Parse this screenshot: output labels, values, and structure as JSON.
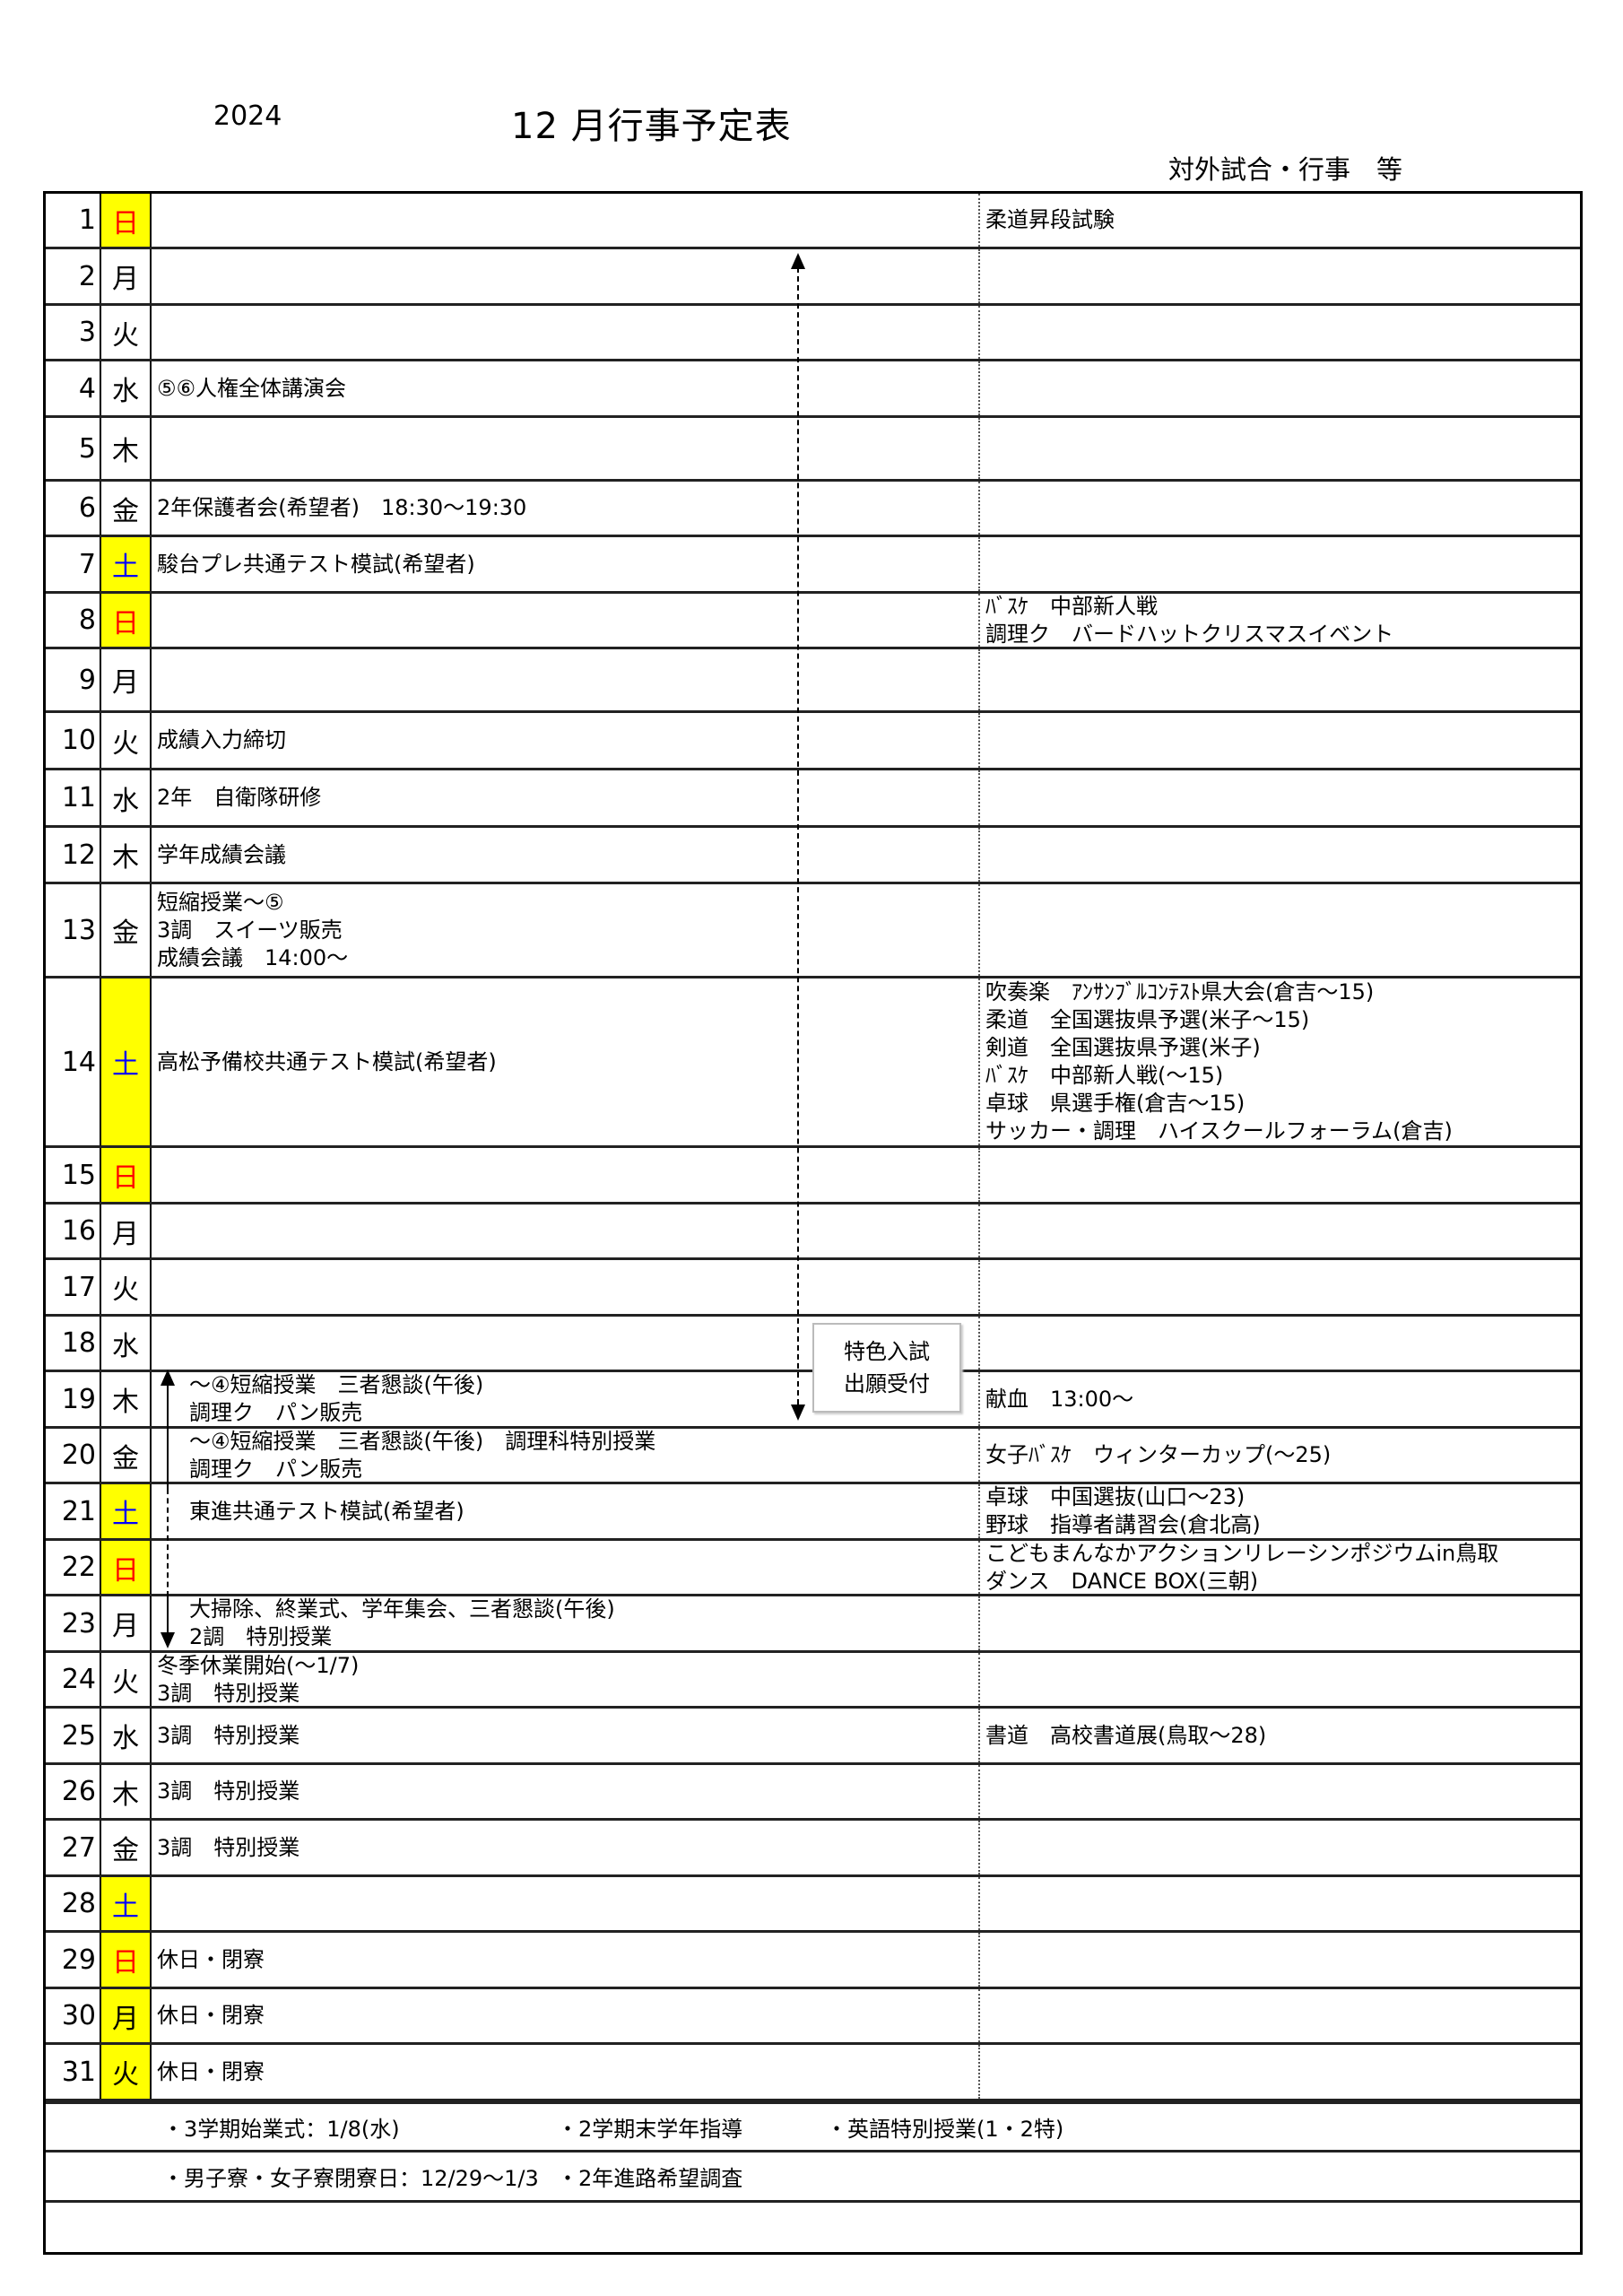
{
  "header": {
    "year": "2024",
    "title": "12 月行事予定表",
    "right_column_heading": "対外試合・行事　等"
  },
  "colors": {
    "weekend_highlight": "#ffff00",
    "sunday_text": "#ff0000",
    "saturday_text": "#0000ff"
  },
  "callout": {
    "lines": [
      "特色入試",
      "出願受付"
    ],
    "range": "2日〜19日"
  },
  "rows": [
    {
      "day": "1",
      "wd": "日",
      "hl": true,
      "color": "red",
      "main": [],
      "right": [
        "柔道昇段試験"
      ]
    },
    {
      "day": "2",
      "wd": "月",
      "main": [],
      "right": []
    },
    {
      "day": "3",
      "wd": "火",
      "main": [],
      "right": []
    },
    {
      "day": "4",
      "wd": "水",
      "main": [
        "⑤⑥人権全体講演会"
      ],
      "right": []
    },
    {
      "day": "5",
      "wd": "木",
      "main": [],
      "right": []
    },
    {
      "day": "6",
      "wd": "金",
      "main": [
        "2年保護者会(希望者)　18:30〜19:30"
      ],
      "right": []
    },
    {
      "day": "7",
      "wd": "土",
      "hl": true,
      "color": "blue",
      "main": [
        "駿台プレ共通テスト模試(希望者)"
      ],
      "right": []
    },
    {
      "day": "8",
      "wd": "日",
      "hl": true,
      "color": "red",
      "main": [],
      "right": [
        "ﾊﾞｽｹ　中部新人戦",
        "調理ク　バードハットクリスマスイベント"
      ]
    },
    {
      "day": "9",
      "wd": "月",
      "main": [],
      "right": []
    },
    {
      "day": "10",
      "wd": "火",
      "main": [
        "成績入力締切"
      ],
      "right": []
    },
    {
      "day": "11",
      "wd": "水",
      "main": [
        "2年　自衛隊研修"
      ],
      "right": []
    },
    {
      "day": "12",
      "wd": "木",
      "main": [
        "学年成績会議"
      ],
      "right": []
    },
    {
      "day": "13",
      "wd": "金",
      "main": [
        "短縮授業〜⑤",
        "3調　スイーツ販売",
        "成績会議　14:00〜"
      ],
      "right": []
    },
    {
      "day": "14",
      "wd": "土",
      "hl": true,
      "color": "blue",
      "main": [
        "高松予備校共通テスト模試(希望者)"
      ],
      "right": [
        "吹奏楽　ｱﾝｻﾝﾌﾞﾙｺﾝﾃｽﾄ県大会(倉吉〜15)",
        "柔道　全国選抜県予選(米子〜15)",
        "剣道　全国選抜県予選(米子)",
        "ﾊﾞｽｹ　中部新人戦(〜15)",
        "卓球　県選手権(倉吉〜15)",
        "サッカー・調理　ハイスクールフォーラム(倉吉)"
      ]
    },
    {
      "day": "15",
      "wd": "日",
      "hl": true,
      "color": "red",
      "main": [],
      "right": []
    },
    {
      "day": "16",
      "wd": "月",
      "main": [],
      "right": []
    },
    {
      "day": "17",
      "wd": "火",
      "main": [],
      "right": []
    },
    {
      "day": "18",
      "wd": "水",
      "main": [],
      "right": []
    },
    {
      "day": "19",
      "wd": "木",
      "indent": true,
      "main": [
        "〜④短縮授業　三者懇談(午後)",
        "調理ク　パン販売"
      ],
      "right": [
        "献血　13:00〜"
      ]
    },
    {
      "day": "20",
      "wd": "金",
      "indent": true,
      "main": [
        "〜④短縮授業　三者懇談(午後)　調理科特別授業",
        "調理ク　パン販売"
      ],
      "right": [
        "女子ﾊﾞｽｹ　ウィンターカップ(〜25)"
      ]
    },
    {
      "day": "21",
      "wd": "土",
      "hl": true,
      "color": "blue",
      "indent": true,
      "main": [
        "東進共通テスト模試(希望者)"
      ],
      "right": [
        "卓球　中国選抜(山口〜23)",
        "野球　指導者講習会(倉北高)"
      ]
    },
    {
      "day": "22",
      "wd": "日",
      "hl": true,
      "color": "red",
      "indent": true,
      "main": [],
      "right": [
        "こどもまんなかアクションリレーシンポジウムin鳥取",
        "ダンス　DANCE BOX(三朝)"
      ]
    },
    {
      "day": "23",
      "wd": "月",
      "indent": true,
      "main": [
        "大掃除、終業式、学年集会、三者懇談(午後)",
        "2調　特別授業"
      ],
      "right": []
    },
    {
      "day": "24",
      "wd": "火",
      "main": [
        "冬季休業開始(〜1/7)",
        "3調　特別授業"
      ],
      "right": []
    },
    {
      "day": "25",
      "wd": "水",
      "main": [
        "3調　特別授業"
      ],
      "right": [
        "書道　高校書道展(鳥取〜28)"
      ]
    },
    {
      "day": "26",
      "wd": "木",
      "main": [
        "3調　特別授業"
      ],
      "right": []
    },
    {
      "day": "27",
      "wd": "金",
      "main": [
        "3調　特別授業"
      ],
      "right": []
    },
    {
      "day": "28",
      "wd": "土",
      "hl": true,
      "color": "blue",
      "main": [],
      "right": []
    },
    {
      "day": "29",
      "wd": "日",
      "hl": true,
      "color": "red",
      "main": [
        "休日・閉寮"
      ],
      "right": []
    },
    {
      "day": "30",
      "wd": "月",
      "hl": true,
      "main": [
        "休日・閉寮"
      ],
      "right": []
    },
    {
      "day": "31",
      "wd": "火",
      "hl": true,
      "main": [
        "休日・閉寮"
      ],
      "right": []
    }
  ],
  "notes": [
    [
      "・3学期始業式：1/8(水)",
      "・2学期末学年指導",
      "・英語特別授業(1・2特)"
    ],
    [
      "・男子寮・女子寮閉寮日：12/29〜1/3",
      "・2年進路希望調査"
    ],
    []
  ]
}
